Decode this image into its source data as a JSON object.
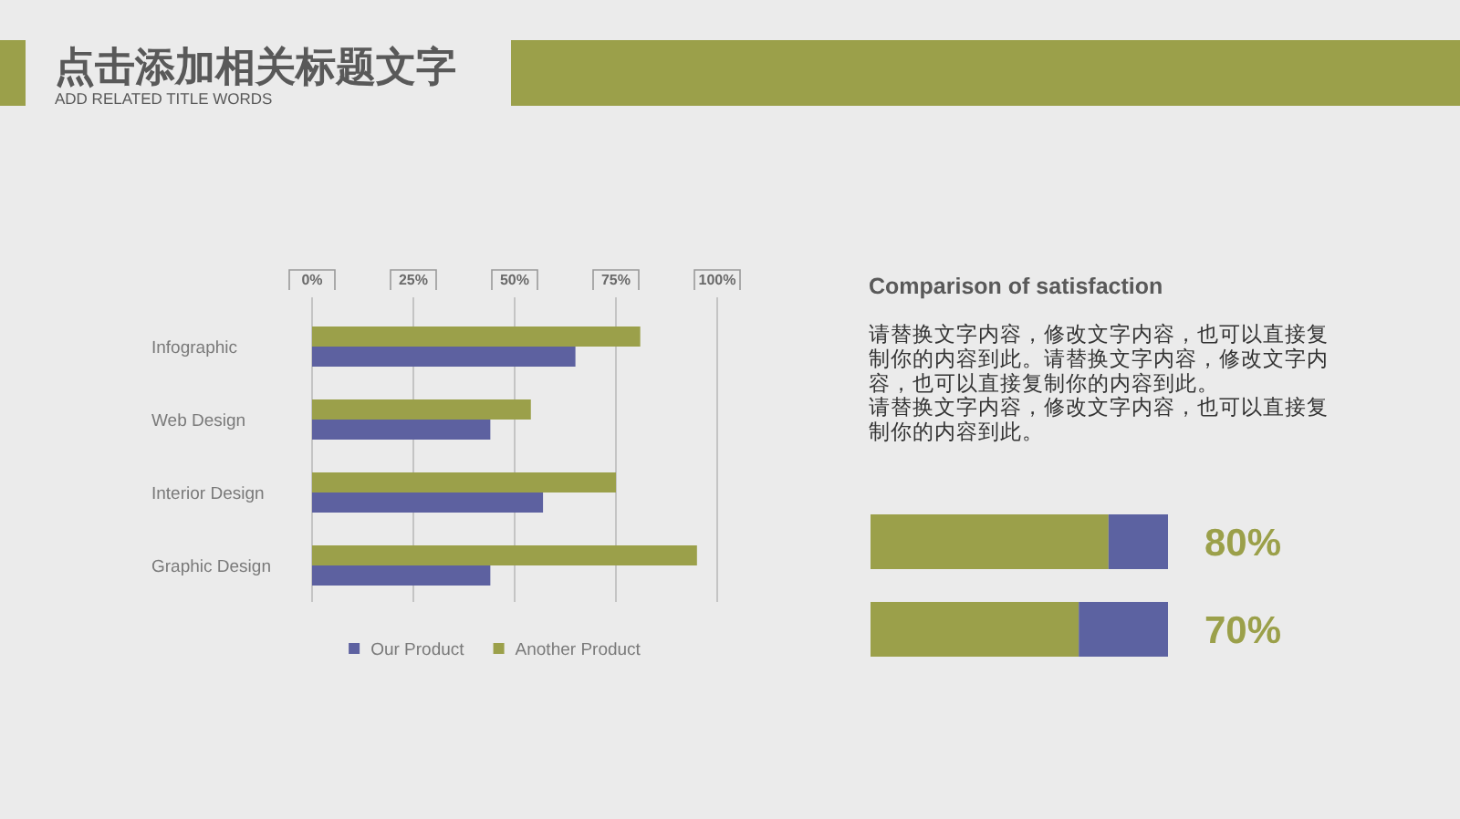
{
  "chart_data": [
    {
      "type": "bar",
      "title": "点击添加相关标题文字",
      "subtitle": "ADD RELATED TITLE WORDS",
      "orientation": "horizontal",
      "categories": [
        "Infographic",
        "Web Design",
        "Interior Design",
        "Graphic Design"
      ],
      "series": [
        {
          "name": "Our Product",
          "color": "#5d61a0",
          "values": [
            65,
            44,
            57,
            44
          ]
        },
        {
          "name": "Another Product",
          "color": "#9ba04a",
          "values": [
            81,
            54,
            75,
            95
          ]
        }
      ],
      "xlim": [
        0,
        100
      ],
      "xticks": [
        {
          "value": 0,
          "label": "0%"
        },
        {
          "value": 25,
          "label": "25%"
        },
        {
          "value": 50,
          "label": "50%"
        },
        {
          "value": 75,
          "label": "75%"
        },
        {
          "value": 100,
          "label": "100%"
        }
      ],
      "grid": "x",
      "legend": "bottom"
    },
    {
      "type": "other",
      "title": "Comparison of satisfaction",
      "annotations": [
        "请替换文字内容，修改文字内容，也可以直接复制你的内容到此。请替换文字内容，修改文字内容，也可以直接复制你的内容到此。",
        "请替换文字内容，修改文字内容，也可以直接复制你的内容到此。"
      ]
    },
    {
      "type": "other",
      "categories": [
        null,
        null
      ],
      "series": [
        {
          "color": "#9ba04a",
          "values": [
            80,
            70
          ],
          "value_labels": [
            "80%",
            "70%"
          ]
        }
      ]
    }
  ]
}
